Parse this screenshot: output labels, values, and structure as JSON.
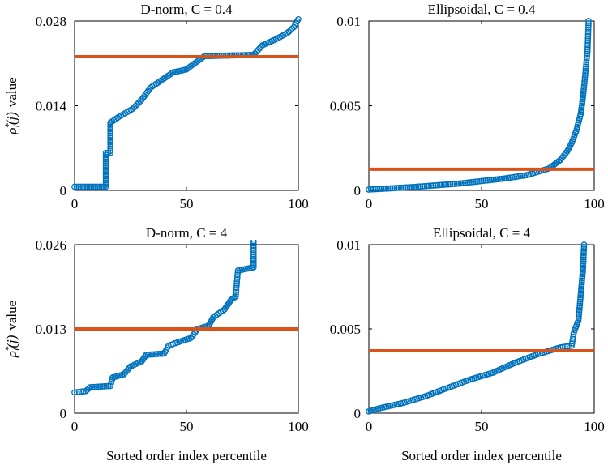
{
  "figure": {
    "xlabel": "Sorted order index percentile",
    "ylabel_prefix": "ρ",
    "ylabel_sub": "i",
    "ylabel_sup": "*",
    "ylabel_arg": "(j)",
    "ylabel_suffix": "value"
  },
  "colors": {
    "marker": "#0072BD",
    "threshold": "#D95319"
  },
  "chart_data": [
    {
      "type": "scatter",
      "title": "D-norm, C = 0.4",
      "xlim": [
        0,
        100
      ],
      "ylim": [
        0,
        0.028
      ],
      "xticks": [
        0,
        50,
        100
      ],
      "xtick_labels": [
        "0",
        "50",
        "100"
      ],
      "yticks": [
        0,
        0.014,
        0.028
      ],
      "ytick_labels": [
        "0",
        "0.014",
        "0.028"
      ],
      "threshold": 0.0221,
      "points": [
        [
          0,
          0.0006
        ],
        [
          14,
          0.0006
        ],
        [
          14,
          0.0062
        ],
        [
          16,
          0.0062
        ],
        [
          16,
          0.0112
        ],
        [
          20,
          0.0122
        ],
        [
          26,
          0.0135
        ],
        [
          30,
          0.015
        ],
        [
          34,
          0.017
        ],
        [
          38,
          0.018
        ],
        [
          44,
          0.0195
        ],
        [
          50,
          0.02
        ],
        [
          58,
          0.0222
        ],
        [
          80,
          0.0224
        ],
        [
          84,
          0.024
        ],
        [
          90,
          0.025
        ],
        [
          95,
          0.026
        ],
        [
          98,
          0.027
        ],
        [
          100,
          0.0283
        ]
      ]
    },
    {
      "type": "scatter",
      "title": "Ellipsoidal, C = 0.4",
      "xlim": [
        0,
        100
      ],
      "ylim": [
        0,
        0.01
      ],
      "xticks": [
        0,
        50,
        100
      ],
      "xtick_labels": [
        "0",
        "50",
        "100"
      ],
      "yticks": [
        0,
        0.005,
        0.01
      ],
      "ytick_labels": [
        "0",
        "0.005",
        "0.01"
      ],
      "threshold": 0.00125,
      "points": [
        [
          0,
          5e-05
        ],
        [
          20,
          0.0002
        ],
        [
          40,
          0.0004
        ],
        [
          60,
          0.0007
        ],
        [
          70,
          0.0009
        ],
        [
          80,
          0.0013
        ],
        [
          85,
          0.0018
        ],
        [
          88,
          0.0023
        ],
        [
          90,
          0.0028
        ],
        [
          92,
          0.0035
        ],
        [
          94,
          0.0045
        ],
        [
          95,
          0.0055
        ],
        [
          96,
          0.0068
        ],
        [
          97,
          0.0082
        ],
        [
          97.5,
          0.01
        ]
      ]
    },
    {
      "type": "scatter",
      "title": "D-norm, C = 4",
      "xlim": [
        0,
        100
      ],
      "ylim": [
        0,
        0.026
      ],
      "xticks": [
        0,
        50,
        100
      ],
      "xtick_labels": [
        "0",
        "50",
        "100"
      ],
      "yticks": [
        0,
        0.013,
        0.026
      ],
      "ytick_labels": [
        "0",
        "0.013",
        "0.026"
      ],
      "threshold": 0.013,
      "points": [
        [
          0,
          0.0032
        ],
        [
          5,
          0.0034
        ],
        [
          7,
          0.004
        ],
        [
          16,
          0.0042
        ],
        [
          17,
          0.0055
        ],
        [
          22,
          0.006
        ],
        [
          25,
          0.0072
        ],
        [
          30,
          0.008
        ],
        [
          32,
          0.009
        ],
        [
          40,
          0.0092
        ],
        [
          42,
          0.0104
        ],
        [
          45,
          0.0108
        ],
        [
          52,
          0.0116
        ],
        [
          55,
          0.013
        ],
        [
          60,
          0.0135
        ],
        [
          62,
          0.0148
        ],
        [
          67,
          0.016
        ],
        [
          70,
          0.0175
        ],
        [
          72,
          0.018
        ],
        [
          73,
          0.022
        ],
        [
          80,
          0.0225
        ],
        [
          80,
          0.0265
        ]
      ]
    },
    {
      "type": "scatter",
      "title": "Ellipsoidal, C = 4",
      "xlim": [
        0,
        100
      ],
      "ylim": [
        0,
        0.01
      ],
      "xticks": [
        0,
        50,
        100
      ],
      "xtick_labels": [
        "0",
        "50",
        "100"
      ],
      "yticks": [
        0,
        0.005,
        0.01
      ],
      "ytick_labels": [
        "0",
        "0.005",
        "0.01"
      ],
      "threshold": 0.0037,
      "points": [
        [
          0,
          0.0001
        ],
        [
          5,
          0.0003
        ],
        [
          15,
          0.0006
        ],
        [
          25,
          0.001
        ],
        [
          35,
          0.0015
        ],
        [
          45,
          0.002
        ],
        [
          55,
          0.0024
        ],
        [
          65,
          0.003
        ],
        [
          75,
          0.0035
        ],
        [
          85,
          0.0039
        ],
        [
          90,
          0.004
        ],
        [
          91,
          0.0048
        ],
        [
          93,
          0.0055
        ],
        [
          94,
          0.007
        ],
        [
          95,
          0.0085
        ],
        [
          95.5,
          0.01
        ]
      ]
    }
  ]
}
